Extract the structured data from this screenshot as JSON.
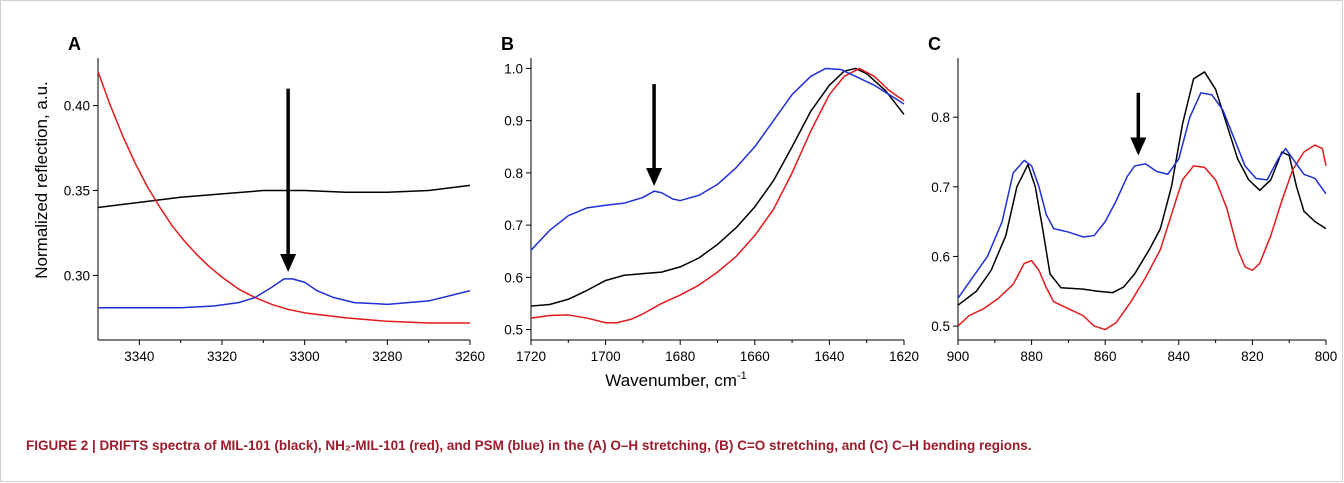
{
  "figure": {
    "ylabel": "Normalized reflection, a.u.",
    "xlabel": "Wavenumber, cm",
    "xlabel_sup": "-1"
  },
  "caption": {
    "lead": "FIGURE 2 | ",
    "text": "DRIFTS spectra of MIL-101 (black), NH₂-MIL-101 (red), and PSM (blue) in the (A) O–H stretching, (B) C=O stretching, and (C) C–H bending regions."
  },
  "colors": {
    "black": "#000000",
    "red": "#e31a1c",
    "blue": "#1f2fd6"
  },
  "chart_data": [
    {
      "panel": "A",
      "type": "line",
      "xlim": [
        3350,
        3260
      ],
      "ylim": [
        0.262,
        0.428
      ],
      "xticks": [
        3340,
        3320,
        3300,
        3280,
        3260
      ],
      "yticks": [
        0.3,
        0.35,
        0.4
      ],
      "ytick_labels": [
        "0.30",
        "0.35",
        "0.40"
      ],
      "arrow": {
        "x": 3304,
        "y_from": 0.41,
        "y_to": 0.302
      },
      "series": [
        {
          "color": "black",
          "points": [
            [
              3350,
              0.34
            ],
            [
              3340,
              0.343
            ],
            [
              3330,
              0.346
            ],
            [
              3320,
              0.348
            ],
            [
              3310,
              0.35
            ],
            [
              3300,
              0.35
            ],
            [
              3290,
              0.349
            ],
            [
              3280,
              0.349
            ],
            [
              3270,
              0.35
            ],
            [
              3260,
              0.353
            ]
          ]
        },
        {
          "color": "red",
          "points": [
            [
              3350,
              0.42
            ],
            [
              3347,
              0.4
            ],
            [
              3344,
              0.382
            ],
            [
              3341,
              0.366
            ],
            [
              3338,
              0.352
            ],
            [
              3335,
              0.34
            ],
            [
              3332,
              0.329
            ],
            [
              3329,
              0.32
            ],
            [
              3326,
              0.312
            ],
            [
              3323,
              0.305
            ],
            [
              3320,
              0.299
            ],
            [
              3316,
              0.292
            ],
            [
              3312,
              0.287
            ],
            [
              3308,
              0.283
            ],
            [
              3304,
              0.28
            ],
            [
              3300,
              0.278
            ],
            [
              3290,
              0.275
            ],
            [
              3280,
              0.273
            ],
            [
              3270,
              0.272
            ],
            [
              3260,
              0.272
            ]
          ]
        },
        {
          "color": "blue",
          "points": [
            [
              3350,
              0.281
            ],
            [
              3340,
              0.281
            ],
            [
              3330,
              0.281
            ],
            [
              3322,
              0.282
            ],
            [
              3316,
              0.284
            ],
            [
              3312,
              0.287
            ],
            [
              3308,
              0.293
            ],
            [
              3305,
              0.298
            ],
            [
              3303,
              0.298
            ],
            [
              3300,
              0.296
            ],
            [
              3297,
              0.291
            ],
            [
              3293,
              0.287
            ],
            [
              3288,
              0.284
            ],
            [
              3280,
              0.283
            ],
            [
              3270,
              0.285
            ],
            [
              3260,
              0.291
            ]
          ]
        }
      ]
    },
    {
      "panel": "B",
      "type": "line",
      "xlim": [
        1720,
        1620
      ],
      "ylim": [
        0.48,
        1.02
      ],
      "xticks": [
        1720,
        1700,
        1680,
        1660,
        1640,
        1620
      ],
      "yticks": [
        0.5,
        0.6,
        0.7,
        0.8,
        0.9,
        1.0
      ],
      "ytick_labels": [
        "0.5",
        "0.6",
        "0.7",
        "0.8",
        "0.9",
        "1.0"
      ],
      "arrow": {
        "x": 1687,
        "y_from": 0.97,
        "y_to": 0.775
      },
      "series": [
        {
          "color": "black",
          "points": [
            [
              1720,
              0.545
            ],
            [
              1715,
              0.548
            ],
            [
              1710,
              0.558
            ],
            [
              1705,
              0.575
            ],
            [
              1700,
              0.594
            ],
            [
              1695,
              0.604
            ],
            [
              1690,
              0.607
            ],
            [
              1685,
              0.61
            ],
            [
              1680,
              0.62
            ],
            [
              1675,
              0.637
            ],
            [
              1670,
              0.663
            ],
            [
              1665,
              0.695
            ],
            [
              1660,
              0.735
            ],
            [
              1655,
              0.785
            ],
            [
              1650,
              0.85
            ],
            [
              1645,
              0.918
            ],
            [
              1640,
              0.968
            ],
            [
              1636,
              0.995
            ],
            [
              1633,
              1.0
            ],
            [
              1630,
              0.99
            ],
            [
              1625,
              0.958
            ],
            [
              1620,
              0.912
            ]
          ]
        },
        {
          "color": "red",
          "points": [
            [
              1720,
              0.522
            ],
            [
              1715,
              0.527
            ],
            [
              1710,
              0.528
            ],
            [
              1705,
              0.522
            ],
            [
              1700,
              0.513
            ],
            [
              1697,
              0.513
            ],
            [
              1693,
              0.52
            ],
            [
              1690,
              0.53
            ],
            [
              1685,
              0.55
            ],
            [
              1680,
              0.566
            ],
            [
              1675,
              0.585
            ],
            [
              1670,
              0.61
            ],
            [
              1665,
              0.64
            ],
            [
              1660,
              0.68
            ],
            [
              1655,
              0.73
            ],
            [
              1650,
              0.8
            ],
            [
              1645,
              0.88
            ],
            [
              1640,
              0.95
            ],
            [
              1636,
              0.985
            ],
            [
              1632,
              1.0
            ],
            [
              1628,
              0.985
            ],
            [
              1624,
              0.958
            ],
            [
              1620,
              0.938
            ]
          ]
        },
        {
          "color": "blue",
          "points": [
            [
              1720,
              0.652
            ],
            [
              1715,
              0.69
            ],
            [
              1710,
              0.718
            ],
            [
              1705,
              0.733
            ],
            [
              1700,
              0.738
            ],
            [
              1695,
              0.742
            ],
            [
              1690,
              0.753
            ],
            [
              1687,
              0.765
            ],
            [
              1685,
              0.762
            ],
            [
              1682,
              0.75
            ],
            [
              1680,
              0.747
            ],
            [
              1675,
              0.757
            ],
            [
              1670,
              0.778
            ],
            [
              1665,
              0.81
            ],
            [
              1660,
              0.85
            ],
            [
              1655,
              0.9
            ],
            [
              1650,
              0.95
            ],
            [
              1645,
              0.985
            ],
            [
              1641,
              1.0
            ],
            [
              1637,
              0.998
            ],
            [
              1633,
              0.985
            ],
            [
              1628,
              0.968
            ],
            [
              1624,
              0.95
            ],
            [
              1620,
              0.932
            ]
          ]
        }
      ]
    },
    {
      "panel": "C",
      "type": "line",
      "xlim": [
        900,
        800
      ],
      "ylim": [
        0.48,
        0.885
      ],
      "xticks": [
        900,
        880,
        860,
        840,
        820,
        800
      ],
      "yticks": [
        0.5,
        0.6,
        0.7,
        0.8
      ],
      "ytick_labels": [
        "0.5",
        "0.6",
        "0.7",
        "0.8"
      ],
      "arrow": {
        "x": 851,
        "y_from": 0.835,
        "y_to": 0.745
      },
      "series": [
        {
          "color": "black",
          "points": [
            [
              900,
              0.53
            ],
            [
              895,
              0.55
            ],
            [
              891,
              0.58
            ],
            [
              887,
              0.63
            ],
            [
              884,
              0.7
            ],
            [
              881,
              0.732
            ],
            [
              879,
              0.7
            ],
            [
              877,
              0.64
            ],
            [
              875,
              0.575
            ],
            [
              872,
              0.555
            ],
            [
              866,
              0.553
            ],
            [
              862,
              0.55
            ],
            [
              858,
              0.548
            ],
            [
              855,
              0.556
            ],
            [
              852,
              0.575
            ],
            [
              848,
              0.61
            ],
            [
              845,
              0.64
            ],
            [
              842,
              0.7
            ],
            [
              839,
              0.79
            ],
            [
              836,
              0.855
            ],
            [
              833,
              0.865
            ],
            [
              830,
              0.84
            ],
            [
              827,
              0.79
            ],
            [
              824,
              0.74
            ],
            [
              821,
              0.71
            ],
            [
              818,
              0.695
            ],
            [
              815,
              0.71
            ],
            [
              812,
              0.75
            ],
            [
              810,
              0.745
            ],
            [
              808,
              0.7
            ],
            [
              806,
              0.665
            ],
            [
              803,
              0.65
            ],
            [
              800,
              0.64
            ]
          ]
        },
        {
          "color": "red",
          "points": [
            [
              900,
              0.5
            ],
            [
              897,
              0.515
            ],
            [
              893,
              0.525
            ],
            [
              889,
              0.54
            ],
            [
              885,
              0.56
            ],
            [
              882,
              0.59
            ],
            [
              880,
              0.594
            ],
            [
              878,
              0.58
            ],
            [
              876,
              0.555
            ],
            [
              874,
              0.535
            ],
            [
              870,
              0.525
            ],
            [
              866,
              0.515
            ],
            [
              863,
              0.5
            ],
            [
              860,
              0.495
            ],
            [
              857,
              0.505
            ],
            [
              853,
              0.535
            ],
            [
              849,
              0.57
            ],
            [
              845,
              0.61
            ],
            [
              842,
              0.66
            ],
            [
              839,
              0.71
            ],
            [
              836,
              0.73
            ],
            [
              833,
              0.728
            ],
            [
              830,
              0.71
            ],
            [
              827,
              0.67
            ],
            [
              824,
              0.61
            ],
            [
              822,
              0.585
            ],
            [
              820,
              0.58
            ],
            [
              818,
              0.59
            ],
            [
              815,
              0.63
            ],
            [
              812,
              0.68
            ],
            [
              809,
              0.725
            ],
            [
              806,
              0.75
            ],
            [
              803,
              0.76
            ],
            [
              801,
              0.755
            ],
            [
              800,
              0.73
            ]
          ]
        },
        {
          "color": "blue",
          "points": [
            [
              900,
              0.54
            ],
            [
              896,
              0.57
            ],
            [
              892,
              0.6
            ],
            [
              888,
              0.65
            ],
            [
              885,
              0.72
            ],
            [
              882,
              0.738
            ],
            [
              880,
              0.73
            ],
            [
              878,
              0.7
            ],
            [
              876,
              0.66
            ],
            [
              874,
              0.64
            ],
            [
              870,
              0.635
            ],
            [
              866,
              0.628
            ],
            [
              863,
              0.63
            ],
            [
              860,
              0.65
            ],
            [
              857,
              0.68
            ],
            [
              854,
              0.715
            ],
            [
              852,
              0.73
            ],
            [
              849,
              0.733
            ],
            [
              846,
              0.722
            ],
            [
              843,
              0.718
            ],
            [
              840,
              0.74
            ],
            [
              837,
              0.8
            ],
            [
              834,
              0.835
            ],
            [
              831,
              0.832
            ],
            [
              828,
              0.81
            ],
            [
              825,
              0.77
            ],
            [
              822,
              0.73
            ],
            [
              819,
              0.712
            ],
            [
              816,
              0.71
            ],
            [
              813,
              0.74
            ],
            [
              811,
              0.755
            ],
            [
              809,
              0.74
            ],
            [
              806,
              0.718
            ],
            [
              803,
              0.712
            ],
            [
              800,
              0.69
            ]
          ]
        }
      ]
    }
  ]
}
